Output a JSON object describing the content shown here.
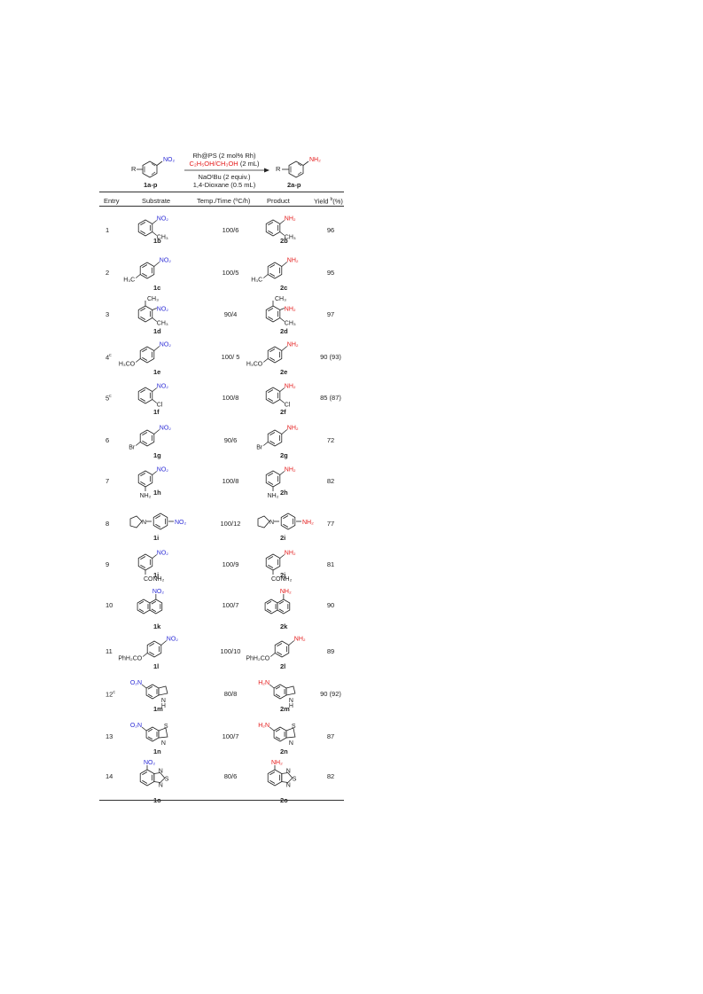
{
  "colors": {
    "nitro": "#2b2bd6",
    "amine": "#e41a1a",
    "text": "#222222"
  },
  "scheme": {
    "reactant_label": "1a-p",
    "product_label": "2a-p",
    "reactant_r": "R",
    "reactant_group": "NO₂",
    "product_r": "R",
    "product_group": "NH₂",
    "catalyst": "Rh@PS (2 mol% Rh)",
    "solvent_red": "C₂H₅OH/CH₃OH",
    "solvent_amount": " (2 mL)",
    "base": "NaOᵗBu (2 equiv.)",
    "co_solvent": "1,4-Dioxane (0.5 mL)"
  },
  "header": {
    "entry": "Entry",
    "substrate": "Substrate",
    "temp_time": "Temp./Time (ºC/h)",
    "product": "Product",
    "yield": "Yield ",
    "yield_sup": "b",
    "yield_unit": "(%)"
  },
  "rows": [
    {
      "entry": "1",
      "sup": "",
      "substrate": "1b",
      "temp_time": "100/6",
      "product": "2b",
      "yield": "96"
    },
    {
      "entry": "2",
      "sup": "",
      "substrate": "1c",
      "temp_time": "100/5",
      "product": "2c",
      "yield": "95"
    },
    {
      "entry": "3",
      "sup": "",
      "substrate": "1d",
      "temp_time": "90/4",
      "product": "2d",
      "yield": "97"
    },
    {
      "entry": "4",
      "sup": "c",
      "substrate": "1e",
      "temp_time": "100/ 5",
      "product": "2e",
      "yield": "90 (93)"
    },
    {
      "entry": "5",
      "sup": "c",
      "substrate": "1f",
      "temp_time": "100/8",
      "product": "2f",
      "yield": "85 (87)"
    },
    {
      "entry": "6",
      "sup": "",
      "substrate": "1g",
      "temp_time": "90/6",
      "product": "2g",
      "yield": "72"
    },
    {
      "entry": "7",
      "sup": "",
      "substrate": "1h",
      "temp_time": "100/8",
      "product": "2h",
      "yield": "82"
    },
    {
      "entry": "8",
      "sup": "",
      "substrate": "1i",
      "temp_time": "100/12",
      "product": "2i",
      "yield": "77"
    },
    {
      "entry": "9",
      "sup": "",
      "substrate": "1j",
      "temp_time": "100/9",
      "product": "2j",
      "yield": "81"
    },
    {
      "entry": "10",
      "sup": "",
      "substrate": "1k",
      "temp_time": "100/7",
      "product": "2k",
      "yield": "90"
    },
    {
      "entry": "11",
      "sup": "",
      "substrate": "1l",
      "temp_time": "100/10",
      "product": "2l",
      "yield": "89"
    },
    {
      "entry": "12",
      "sup": "c",
      "substrate": "1m",
      "temp_time": "80/8",
      "product": "2m",
      "yield": "90 (92)"
    },
    {
      "entry": "13",
      "sup": "",
      "substrate": "1n",
      "temp_time": "100/7",
      "product": "2n",
      "yield": "87"
    },
    {
      "entry": "14",
      "sup": "",
      "substrate": "1o",
      "temp_time": "80/6",
      "product": "2o",
      "yield": "82"
    }
  ],
  "molecules": {
    "nitro": "NO₂",
    "nitro_left": "O₂N",
    "amine": "NH₂",
    "amine_left": "H₂N",
    "ch3": "CH₃",
    "h3c": "H₃C",
    "h3co": "H₃CO",
    "cl": "Cl",
    "br": "Br",
    "nh2_sub": "NH₂",
    "n": "N",
    "conh2": "CONH₂",
    "phch2o": "PhH₂CO",
    "h": "H",
    "s": "S"
  }
}
